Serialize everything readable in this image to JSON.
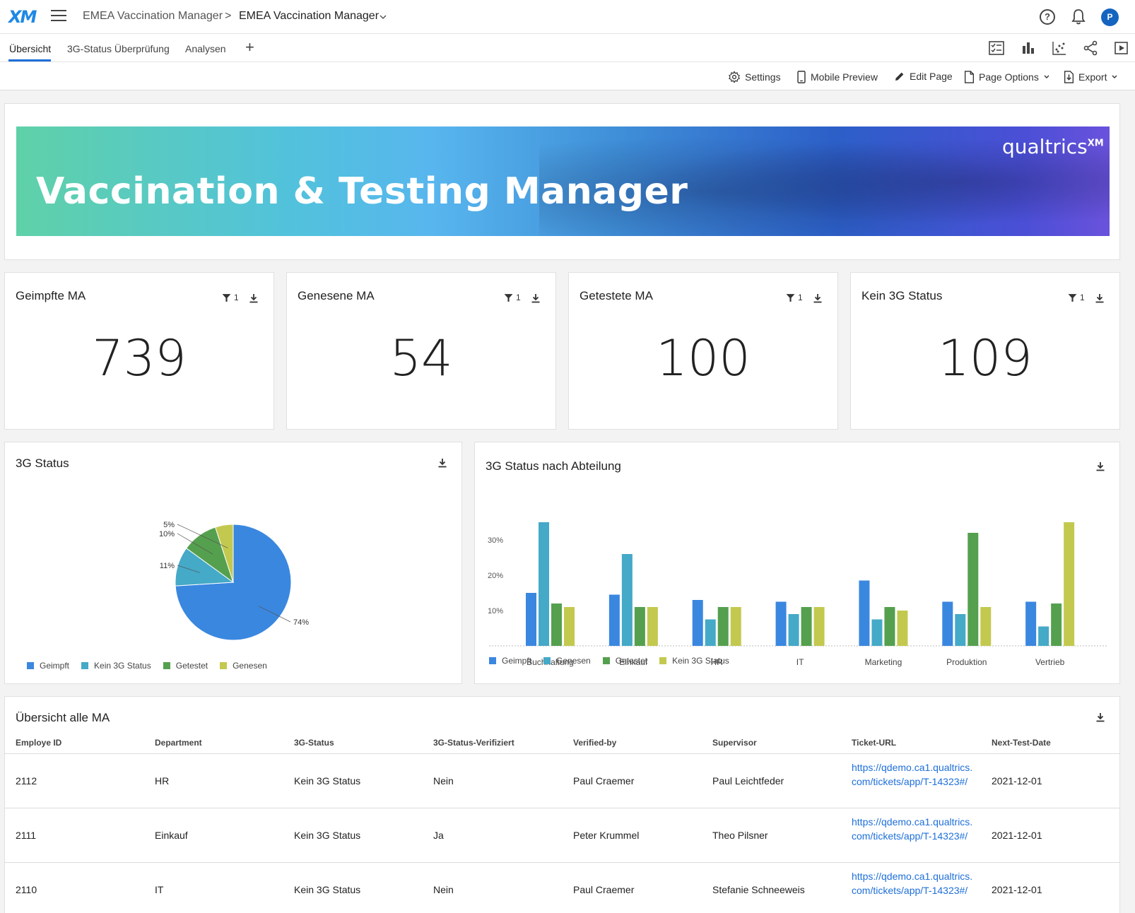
{
  "header": {
    "logo": "XM",
    "breadcrumb_project": "EMEA Vaccination Manager",
    "breadcrumb_separator": ">",
    "breadcrumb_dashboard": "EMEA Vaccination Manager",
    "avatar_initial": "P"
  },
  "tabs": [
    {
      "label": "Übersicht",
      "active": true
    },
    {
      "label": "3G-Status Überprüfung",
      "active": false
    },
    {
      "label": "Analysen",
      "active": false
    }
  ],
  "actions": {
    "settings": "Settings",
    "mobile_preview": "Mobile Preview",
    "edit_page": "Edit Page",
    "page_options": "Page Options",
    "export": "Export"
  },
  "banner": {
    "title": "Vaccination & Testing Manager",
    "brand": "qualtrics",
    "brand_sup": "XM"
  },
  "kpis": [
    {
      "title": "Geimpfte MA",
      "filter_count": "1",
      "value": "739"
    },
    {
      "title": "Genesene MA",
      "filter_count": "1",
      "value": "54"
    },
    {
      "title": "Getestete MA",
      "filter_count": "1",
      "value": "100"
    },
    {
      "title": "Kein 3G Status",
      "filter_count": "1",
      "value": "109"
    }
  ],
  "colors": {
    "geimpft": "#3a87e0",
    "kein3g_pie": "#45a9c8",
    "genesen_bar": "#45a9c8",
    "getestet": "#55a04e",
    "yellow": "#c3c94f"
  },
  "pie_widget": {
    "title": "3G Status"
  },
  "bar_widget": {
    "title": "3G Status nach Abteilung"
  },
  "chart_data": [
    {
      "type": "pie",
      "title": "3G Status",
      "labels": [
        "Geimpft",
        "Kein 3G Status",
        "Getestet",
        "Genesen"
      ],
      "values": [
        74,
        11,
        10,
        5
      ],
      "value_labels": [
        "74%",
        "11%",
        "10%",
        "5%"
      ],
      "legend_position": "bottom-left"
    },
    {
      "type": "bar",
      "title": "3G Status nach Abteilung",
      "categories": [
        "Buchhaltung",
        "Einkauf",
        "HR",
        "IT",
        "Marketing",
        "Produktion",
        "Vertrieb"
      ],
      "series": [
        {
          "name": "Geimpft",
          "values": [
            15,
            14.5,
            13,
            12.5,
            18.5,
            12.5,
            12.5
          ]
        },
        {
          "name": "Genesen",
          "values": [
            35,
            26,
            7.5,
            9,
            7.5,
            9,
            5.5
          ]
        },
        {
          "name": "Getestet",
          "values": [
            12,
            11,
            11,
            11,
            11,
            32,
            12
          ]
        },
        {
          "name": "Kein 3G Status",
          "values": [
            11,
            11,
            11,
            11,
            10,
            11,
            35
          ]
        }
      ],
      "y_ticks": [
        "10%",
        "20%",
        "30%"
      ],
      "ylim": [
        0,
        40
      ],
      "grid": false,
      "legend_position": "bottom-left"
    }
  ],
  "table": {
    "title": "Übersicht alle MA",
    "columns": [
      "Employe ID",
      "Department",
      "3G-Status",
      "3G-Status-Verifiziert",
      "Verified-by",
      "Supervisor",
      "Ticket-URL",
      "Next-Test-Date"
    ],
    "rows": [
      [
        "2112",
        "HR",
        "Kein 3G Status",
        "Nein",
        "Paul Craemer",
        "Paul Leichtfeder",
        "https://qdemo.ca1.qualtrics.com/tickets/app/T-14323#/",
        "2021-12-01"
      ],
      [
        "2111",
        "Einkauf",
        "Kein 3G Status",
        "Ja",
        "Peter Krummel",
        "Theo Pilsner",
        "https://qdemo.ca1.qualtrics.com/tickets/app/T-14323#/",
        "2021-12-01"
      ],
      [
        "2110",
        "IT",
        "Kein 3G Status",
        "Nein",
        "Paul Craemer",
        "Stefanie Schneeweis",
        "https://qdemo.ca1.qualtrics.com/tickets/app/T-14323#/",
        "2021-12-01"
      ]
    ]
  }
}
